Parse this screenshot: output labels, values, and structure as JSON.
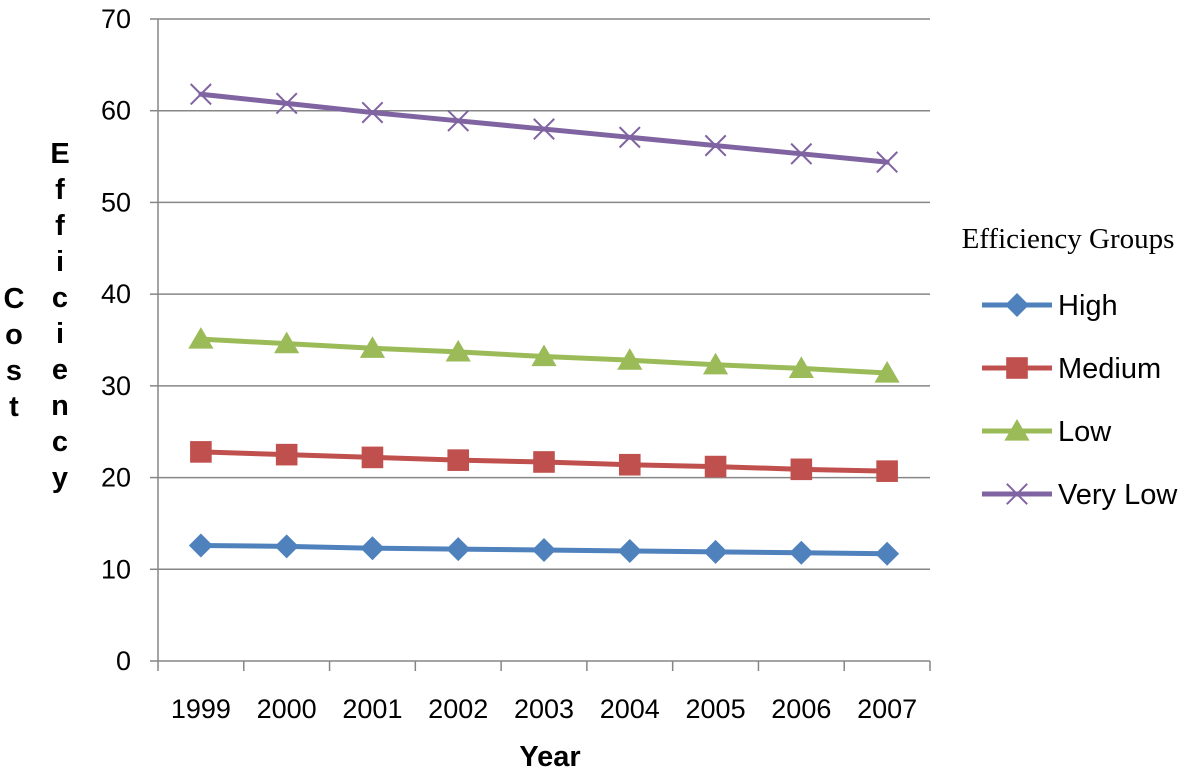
{
  "chart_data": {
    "type": "line",
    "x": [
      "1999",
      "2000",
      "2001",
      "2002",
      "2003",
      "2004",
      "2005",
      "2006",
      "2007"
    ],
    "xlabel": "Year",
    "ylabel_words": [
      "Cost",
      "Efficiency"
    ],
    "ylim": [
      0,
      70
    ],
    "yticks": [
      0,
      10,
      20,
      30,
      40,
      50,
      60,
      70
    ],
    "grid": true,
    "legend": {
      "title": "Efficiency Groups",
      "position": "right"
    },
    "series": [
      {
        "name": "High",
        "color": "#4f81bd",
        "marker": "diamond",
        "values": [
          12.6,
          12.5,
          12.3,
          12.2,
          12.1,
          12.0,
          11.9,
          11.8,
          11.7
        ]
      },
      {
        "name": "Medium",
        "color": "#c0504d",
        "marker": "square",
        "values": [
          22.8,
          22.5,
          22.2,
          21.9,
          21.7,
          21.4,
          21.2,
          20.9,
          20.7
        ]
      },
      {
        "name": "Low",
        "color": "#9bbb59",
        "marker": "triangle",
        "values": [
          35.1,
          34.6,
          34.1,
          33.7,
          33.2,
          32.8,
          32.3,
          31.9,
          31.4
        ]
      },
      {
        "name": "Very Low",
        "color": "#8064a2",
        "marker": "x",
        "values": [
          61.8,
          60.8,
          59.8,
          58.9,
          58.0,
          57.1,
          56.2,
          55.3,
          54.4
        ]
      }
    ]
  }
}
